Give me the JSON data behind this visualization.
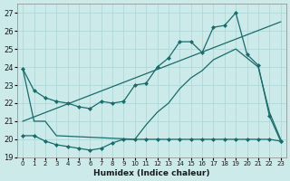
{
  "xlabel": "Humidex (Indice chaleur)",
  "background_color": "#cceaea",
  "grid_color": "#b0d8d8",
  "line_color": "#1a6b6b",
  "xlim": [
    -0.5,
    23.5
  ],
  "ylim": [
    19,
    27.5
  ],
  "yticks": [
    19,
    20,
    21,
    22,
    23,
    24,
    25,
    26,
    27
  ],
  "xticks": [
    0,
    1,
    2,
    3,
    4,
    5,
    6,
    7,
    8,
    9,
    10,
    11,
    12,
    13,
    14,
    15,
    16,
    17,
    18,
    19,
    20,
    21,
    22,
    23
  ],
  "curve1_x": [
    0,
    1,
    2,
    3,
    4,
    5,
    6,
    7,
    8,
    9,
    10,
    11,
    12,
    13,
    14,
    15,
    16,
    17,
    18,
    19,
    20,
    21,
    22,
    23
  ],
  "curve1_y": [
    23.9,
    22.7,
    22.3,
    22.1,
    22.0,
    21.8,
    21.7,
    22.1,
    22.0,
    22.1,
    23.0,
    23.1,
    24.0,
    24.5,
    25.4,
    25.4,
    24.8,
    26.2,
    26.3,
    27.0,
    24.7,
    24.1,
    21.3,
    19.9
  ],
  "curve2_x": [
    0,
    1,
    2,
    3,
    10,
    11,
    12,
    13,
    14,
    15,
    16,
    17,
    18,
    19,
    20,
    21,
    22,
    23
  ],
  "curve2_y": [
    23.9,
    21.0,
    21.0,
    20.2,
    20.0,
    20.8,
    21.5,
    22.0,
    22.8,
    23.4,
    23.8,
    24.4,
    24.7,
    25.0,
    24.5,
    24.0,
    21.5,
    20.0
  ],
  "curve3_x": [
    0,
    1,
    2,
    3,
    4,
    5,
    6,
    7,
    8,
    9,
    10,
    11,
    12,
    13,
    14,
    15,
    16,
    17,
    18,
    19,
    20,
    21,
    22,
    23
  ],
  "curve3_y": [
    20.2,
    20.2,
    19.9,
    19.7,
    19.6,
    19.5,
    19.4,
    19.5,
    19.8,
    20.0,
    20.0,
    20.0,
    20.0,
    20.0,
    20.0,
    20.0,
    20.0,
    20.0,
    20.0,
    20.0,
    20.0,
    20.0,
    20.0,
    19.9
  ],
  "trend_x": [
    0,
    23
  ],
  "trend_y": [
    21.0,
    26.5
  ]
}
